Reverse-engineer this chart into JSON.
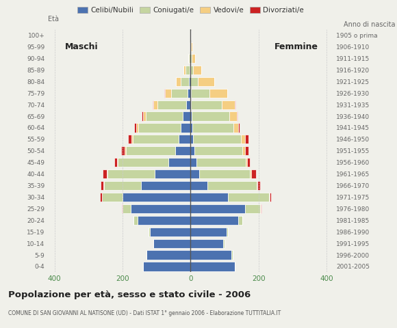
{
  "age_groups": [
    "0-4",
    "5-9",
    "10-14",
    "15-19",
    "20-24",
    "25-29",
    "30-34",
    "35-39",
    "40-44",
    "45-49",
    "50-54",
    "55-59",
    "60-64",
    "65-69",
    "70-74",
    "75-79",
    "80-84",
    "85-89",
    "90-94",
    "95-99",
    "100+"
  ],
  "birth_years": [
    "2001-2005",
    "1996-2000",
    "1991-1995",
    "1986-1990",
    "1981-1985",
    "1976-1980",
    "1971-1975",
    "1966-1970",
    "1961-1965",
    "1956-1960",
    "1951-1955",
    "1946-1950",
    "1941-1945",
    "1936-1940",
    "1931-1935",
    "1926-1930",
    "1921-1925",
    "1916-1920",
    "1911-1915",
    "1906-1910",
    "1905 o prima"
  ],
  "male_celibi": [
    140,
    130,
    110,
    120,
    155,
    175,
    200,
    145,
    105,
    65,
    45,
    35,
    28,
    22,
    12,
    8,
    4,
    2,
    0,
    0,
    0
  ],
  "male_coniugati": [
    0,
    0,
    0,
    4,
    12,
    25,
    60,
    110,
    140,
    150,
    145,
    135,
    125,
    110,
    85,
    50,
    25,
    12,
    4,
    1,
    0
  ],
  "male_vedovi": [
    0,
    0,
    0,
    0,
    0,
    0,
    1,
    1,
    2,
    2,
    4,
    4,
    6,
    8,
    12,
    18,
    14,
    7,
    3,
    1,
    0
  ],
  "male_divorziati": [
    0,
    0,
    0,
    0,
    1,
    2,
    5,
    8,
    12,
    8,
    10,
    10,
    7,
    4,
    2,
    1,
    0,
    0,
    0,
    0,
    0
  ],
  "female_celibi": [
    130,
    120,
    95,
    105,
    140,
    160,
    110,
    50,
    25,
    18,
    12,
    8,
    6,
    4,
    2,
    1,
    0,
    0,
    0,
    0,
    0
  ],
  "female_coniugati": [
    0,
    4,
    4,
    4,
    12,
    45,
    120,
    145,
    150,
    145,
    140,
    140,
    120,
    110,
    90,
    55,
    22,
    8,
    3,
    1,
    0
  ],
  "female_vedovi": [
    0,
    0,
    0,
    0,
    0,
    1,
    2,
    2,
    4,
    4,
    8,
    12,
    14,
    22,
    38,
    52,
    48,
    24,
    11,
    5,
    2
  ],
  "female_divorziati": [
    0,
    0,
    0,
    0,
    1,
    2,
    4,
    7,
    14,
    8,
    10,
    10,
    4,
    2,
    1,
    0,
    0,
    0,
    0,
    0,
    0
  ],
  "colors": {
    "celibi": "#4C72B0",
    "coniugati": "#C5D5A0",
    "vedovi": "#F5CE82",
    "divorziati": "#CC2222"
  },
  "title": "Popolazione per età, sesso e stato civile - 2006",
  "subtitle": "COMUNE DI SAN GIOVANNI AL NATISONE (UD) - Dati ISTAT 1° gennaio 2006 - Elaborazione TUTTITALIA.IT",
  "xlim": 420,
  "xticks": [
    -400,
    -200,
    0,
    200,
    400
  ],
  "background_color": "#f0f0ea",
  "legend_labels": [
    "Celibi/Nubili",
    "Coniugati/e",
    "Vedovi/e",
    "Divorziati/e"
  ],
  "grid_color": "#cccccc",
  "tick_color": "#4a8a4a",
  "label_color": "#666666"
}
